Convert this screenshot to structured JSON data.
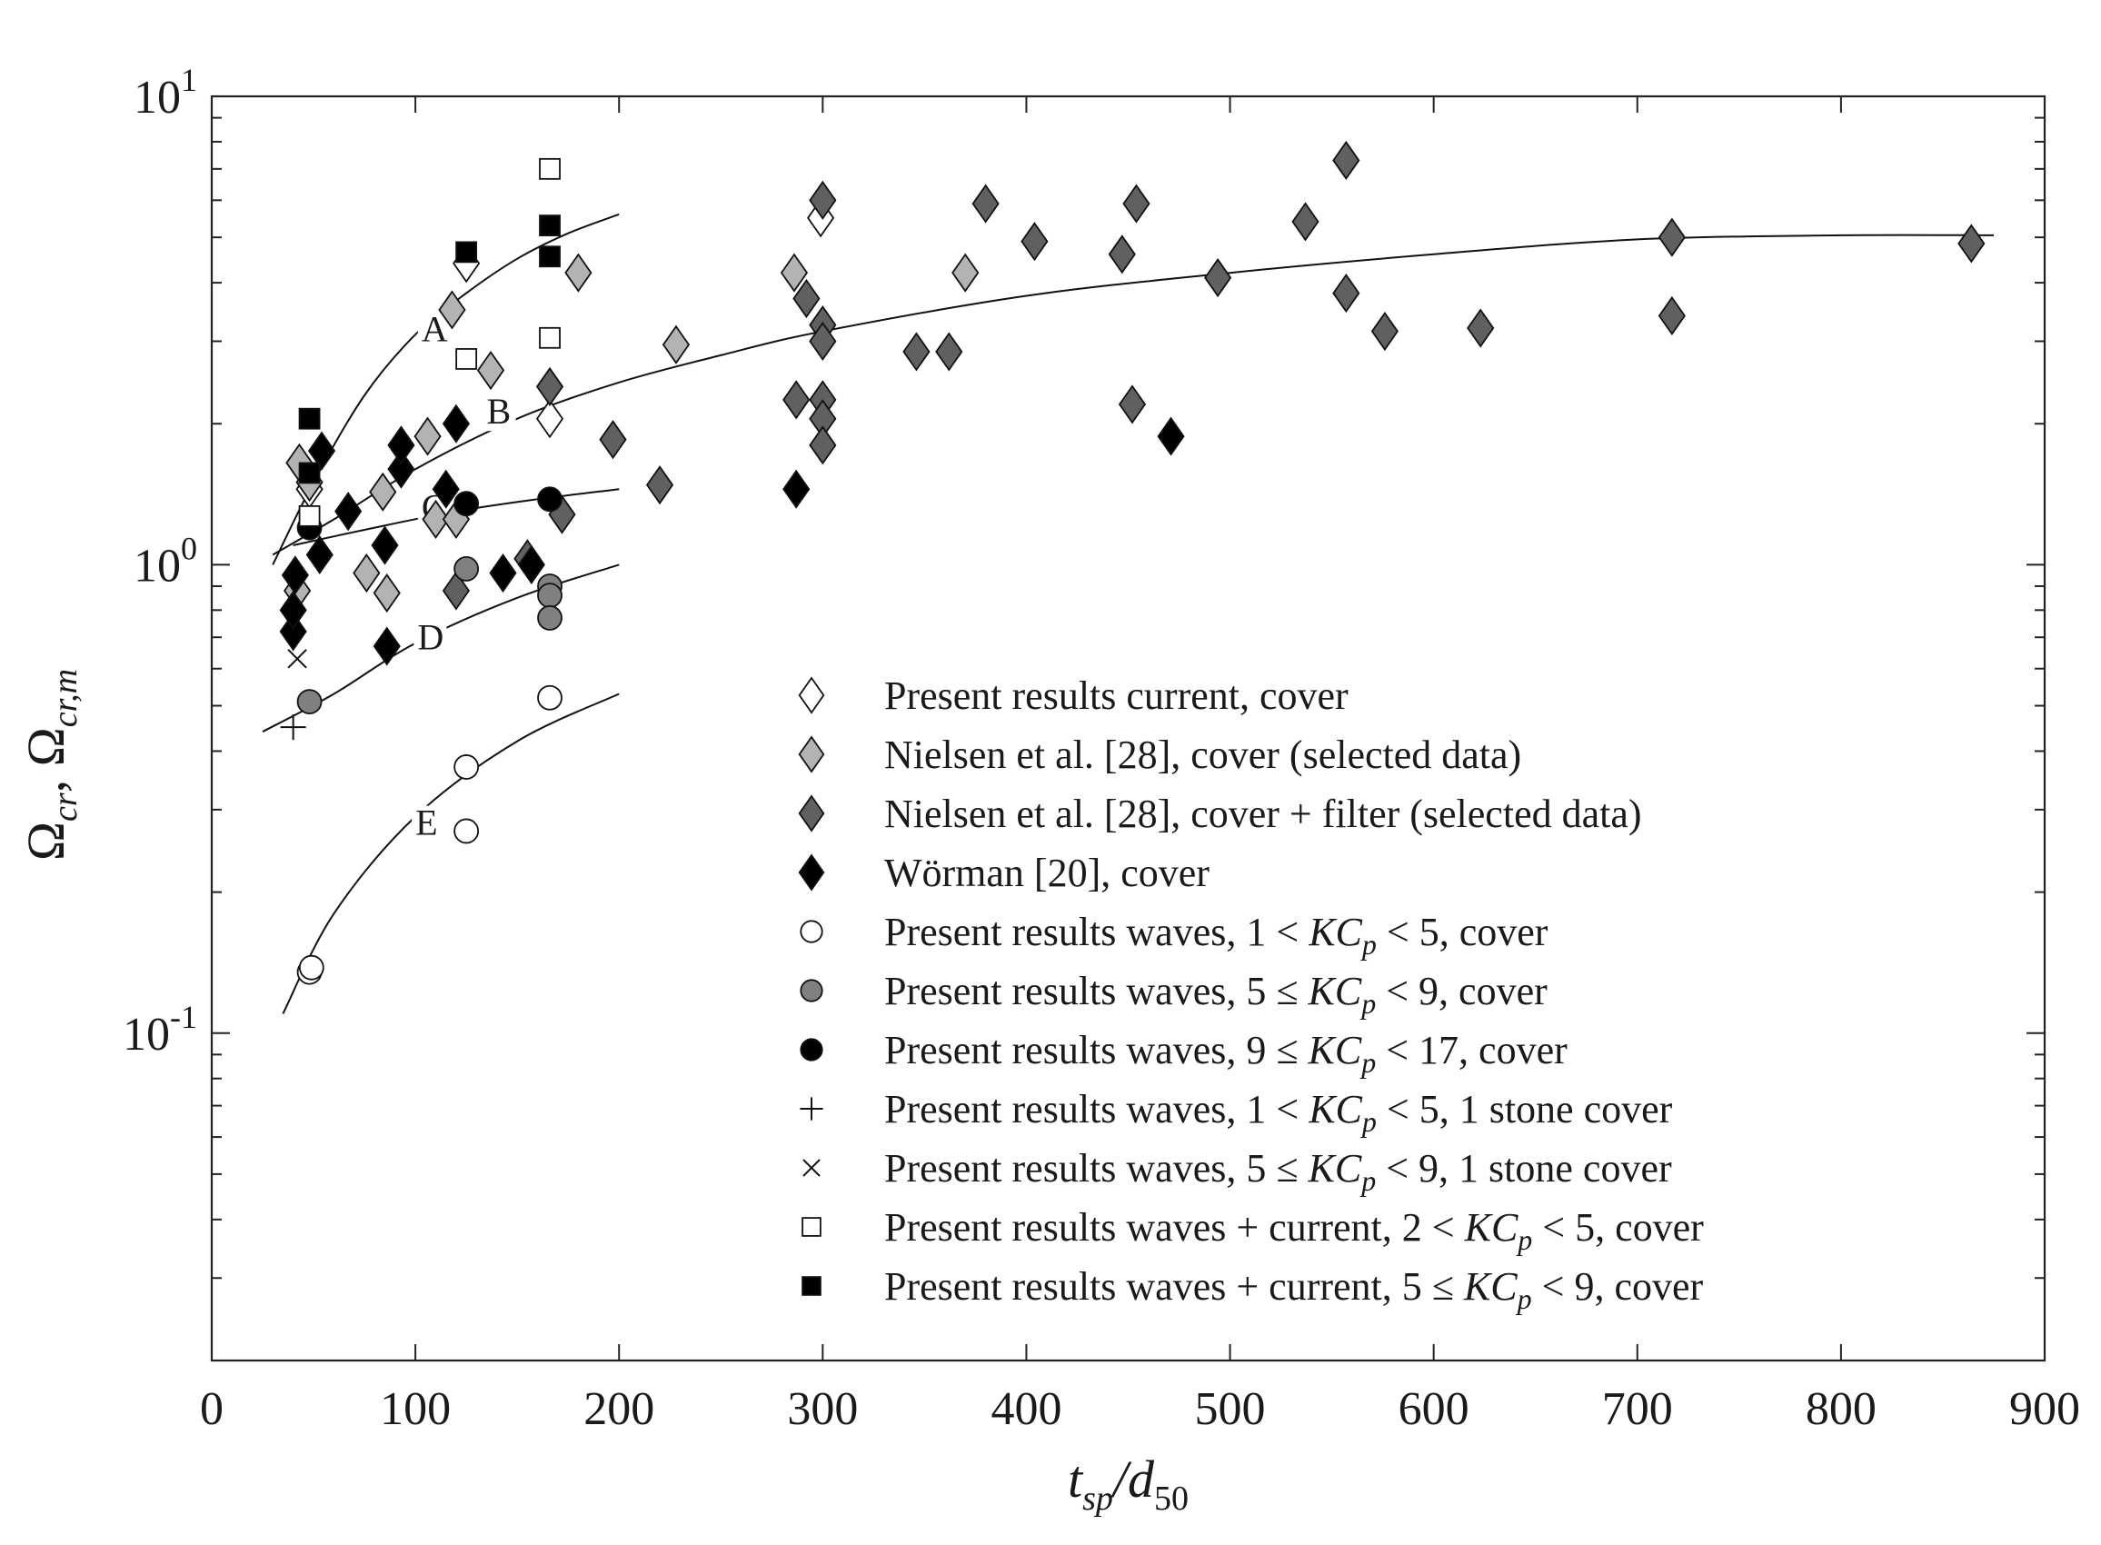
{
  "chart_data": {
    "type": "scatter",
    "xlabel": "t_sp/d_50",
    "ylabel": "Ω_cr, Ω_cr,m",
    "xlabel_parts": {
      "base": "t",
      "sub": "sp",
      "sep": "/d",
      "sub2": "50"
    },
    "ylabel_parts": {
      "a": "Ω",
      "a_sub": "cr",
      "sep": ", Ω",
      "b_sub": "cr,m"
    },
    "xlim": [
      0,
      900
    ],
    "ylim": [
      0.02,
      10
    ],
    "yscale": "log",
    "x_ticks": [
      "0",
      "100",
      "200",
      "300",
      "400",
      "500",
      "600",
      "700",
      "800",
      "900"
    ],
    "y_ticks": [
      {
        "value": 10,
        "base": "10",
        "exp": "1"
      },
      {
        "value": 1,
        "base": "10",
        "exp": "0"
      },
      {
        "value": 0.1,
        "base": "10",
        "exp": "-1"
      }
    ],
    "legend_position": "lower-right",
    "curves": [
      {
        "label": "A",
        "label_at": [
          103,
          3.0
        ],
        "points": [
          [
            30,
            1.0
          ],
          [
            50,
            1.5
          ],
          [
            75,
            2.3
          ],
          [
            100,
            3.1
          ],
          [
            125,
            3.8
          ],
          [
            150,
            4.5
          ],
          [
            175,
            5.1
          ],
          [
            200,
            5.6
          ]
        ]
      },
      {
        "label": "B",
        "label_at": [
          135,
          2.0
        ],
        "points": [
          [
            30,
            1.05
          ],
          [
            60,
            1.25
          ],
          [
            100,
            1.6
          ],
          [
            150,
            2.05
          ],
          [
            200,
            2.45
          ],
          [
            250,
            2.8
          ],
          [
            300,
            3.15
          ],
          [
            400,
            3.75
          ],
          [
            500,
            4.2
          ],
          [
            600,
            4.6
          ],
          [
            700,
            4.95
          ],
          [
            800,
            5.05
          ],
          [
            875,
            5.05
          ]
        ]
      },
      {
        "label": "C",
        "label_at": [
          103,
          1.25
        ],
        "points": [
          [
            40,
            1.1
          ],
          [
            80,
            1.2
          ],
          [
            120,
            1.3
          ],
          [
            160,
            1.38
          ],
          [
            200,
            1.45
          ]
        ]
      },
      {
        "label": "D",
        "label_at": [
          101,
          0.66
        ],
        "points": [
          [
            25,
            0.44
          ],
          [
            60,
            0.53
          ],
          [
            100,
            0.68
          ],
          [
            150,
            0.85
          ],
          [
            200,
            1.0
          ]
        ]
      },
      {
        "label": "E",
        "label_at": [
          100,
          0.265
        ],
        "points": [
          [
            35,
            0.11
          ],
          [
            60,
            0.18
          ],
          [
            100,
            0.29
          ],
          [
            150,
            0.42
          ],
          [
            200,
            0.53
          ]
        ]
      }
    ],
    "series": [
      {
        "name": "Present results current, cover",
        "marker": "diamond",
        "fill": "#ffffff",
        "points": [
          [
            48,
            1.45
          ],
          [
            125,
            4.4
          ],
          [
            166,
            2.05
          ],
          [
            299,
            5.5
          ]
        ]
      },
      {
        "name": "Nielsen et al. [28], cover (selected data)",
        "marker": "diamond",
        "fill": "#b3b3b3",
        "points": [
          [
            43,
            1.65
          ],
          [
            48,
            1.5
          ],
          [
            42,
            0.88
          ],
          [
            76,
            0.96
          ],
          [
            86,
            0.87
          ],
          [
            84,
            1.43
          ],
          [
            106,
            1.88
          ],
          [
            110,
            1.25
          ],
          [
            118,
            3.5
          ],
          [
            120,
            1.25
          ],
          [
            137,
            2.6
          ],
          [
            180,
            4.2
          ],
          [
            228,
            2.95
          ],
          [
            286,
            4.2
          ],
          [
            370,
            4.2
          ]
        ]
      },
      {
        "name": "Nielsen et al. [28], cover + filter (selected data)",
        "marker": "diamond",
        "fill": "#606060",
        "points": [
          [
            120,
            0.88
          ],
          [
            155,
            1.03
          ],
          [
            166,
            2.4
          ],
          [
            172,
            1.28
          ],
          [
            197,
            1.85
          ],
          [
            220,
            1.48
          ],
          [
            287,
            2.25
          ],
          [
            292,
            3.7
          ],
          [
            300,
            6.0
          ],
          [
            300,
            3.25
          ],
          [
            300,
            3.0
          ],
          [
            300,
            2.25
          ],
          [
            300,
            2.05
          ],
          [
            300,
            1.8
          ],
          [
            346,
            2.85
          ],
          [
            362,
            2.85
          ],
          [
            380,
            5.9
          ],
          [
            404,
            4.9
          ],
          [
            447,
            4.6
          ],
          [
            452,
            2.2
          ],
          [
            454,
            5.9
          ],
          [
            494,
            4.1
          ],
          [
            537,
            5.4
          ],
          [
            557,
            7.3
          ],
          [
            557,
            3.8
          ],
          [
            576,
            3.15
          ],
          [
            623,
            3.2
          ],
          [
            717,
            5.0
          ],
          [
            717,
            3.4
          ],
          [
            864,
            4.85
          ]
        ]
      },
      {
        "name": "Wörman [20], cover",
        "marker": "diamond",
        "fill": "#000000",
        "points": [
          [
            40,
            0.72
          ],
          [
            40,
            0.8
          ],
          [
            41,
            0.95
          ],
          [
            53,
            1.05
          ],
          [
            54,
            1.75
          ],
          [
            67,
            1.3
          ],
          [
            85,
            1.1
          ],
          [
            86,
            0.67
          ],
          [
            93,
            1.6
          ],
          [
            93,
            1.8
          ],
          [
            115,
            1.45
          ],
          [
            120,
            2.0
          ],
          [
            143,
            0.96
          ],
          [
            157,
            1.0
          ],
          [
            287,
            1.45
          ],
          [
            471,
            1.88
          ]
        ]
      },
      {
        "name": "Present results waves, 1 < KC_p < 5, cover",
        "marker": "circle",
        "fill": "#ffffff",
        "points": [
          [
            48,
            0.135
          ],
          [
            49,
            0.138
          ],
          [
            125,
            0.37
          ],
          [
            125,
            0.27
          ],
          [
            166,
            0.52
          ]
        ]
      },
      {
        "name": "Present results waves, 5 ≤ KC_p < 9, cover",
        "marker": "circle",
        "fill": "#808080",
        "points": [
          [
            48,
            0.51
          ],
          [
            125,
            0.98
          ],
          [
            166,
            0.9
          ],
          [
            166,
            0.86
          ],
          [
            166,
            0.77
          ]
        ]
      },
      {
        "name": "Present results waves, 9 ≤ KC_p < 17, cover",
        "marker": "circle",
        "fill": "#000000",
        "points": [
          [
            48,
            1.2
          ],
          [
            125,
            1.35
          ],
          [
            166,
            1.38
          ]
        ]
      },
      {
        "name": "Present results waves, 1 < KC_p < 5, 1 stone cover",
        "marker": "plus",
        "fill": "#000000",
        "points": [
          [
            40,
            0.45
          ]
        ]
      },
      {
        "name": "Present results waves, 5 ≤ KC_p < 9, 1 stone cover",
        "marker": "x",
        "fill": "#000000",
        "points": [
          [
            42,
            0.63
          ]
        ]
      },
      {
        "name": "Present results waves + current, 2 < KC_p < 5, cover",
        "marker": "square",
        "fill": "#ffffff",
        "points": [
          [
            48,
            1.27
          ],
          [
            125,
            2.75
          ],
          [
            166,
            7.0
          ],
          [
            166,
            3.05
          ]
        ]
      },
      {
        "name": "Present results waves + current, 5 ≤ KC_p < 9, cover",
        "marker": "square",
        "fill": "#000000",
        "points": [
          [
            48,
            2.05
          ],
          [
            48,
            1.57
          ],
          [
            125,
            4.65
          ],
          [
            166,
            5.3
          ],
          [
            166,
            4.55
          ]
        ]
      }
    ],
    "legend": [
      {
        "marker": "diamond",
        "fill": "#ffffff",
        "parts": [
          {
            "t": "Present results current, cover"
          }
        ]
      },
      {
        "marker": "diamond",
        "fill": "#b3b3b3",
        "parts": [
          {
            "t": "Nielsen et al. [28], cover (selected data)"
          }
        ]
      },
      {
        "marker": "diamond",
        "fill": "#606060",
        "parts": [
          {
            "t": "Nielsen et al. [28], cover + filter (selected data)"
          }
        ]
      },
      {
        "marker": "diamond",
        "fill": "#000000",
        "parts": [
          {
            "t": "Wörman [20], cover"
          }
        ]
      },
      {
        "marker": "circle",
        "fill": "#ffffff",
        "parts": [
          {
            "t": "Present results waves, 1 < "
          },
          {
            "t": "KC",
            "i": true
          },
          {
            "t": "p",
            "sub": true,
            "i": true
          },
          {
            "t": " < 5, cover"
          }
        ]
      },
      {
        "marker": "circle",
        "fill": "#808080",
        "parts": [
          {
            "t": "Present results waves, 5 ≤ "
          },
          {
            "t": "KC",
            "i": true
          },
          {
            "t": "p",
            "sub": true,
            "i": true
          },
          {
            "t": " < 9, cover"
          }
        ]
      },
      {
        "marker": "circle",
        "fill": "#000000",
        "parts": [
          {
            "t": "Present results waves, 9 ≤ "
          },
          {
            "t": "KC",
            "i": true
          },
          {
            "t": "p",
            "sub": true,
            "i": true
          },
          {
            "t": " < 17, cover"
          }
        ]
      },
      {
        "marker": "plus",
        "fill": "#000000",
        "parts": [
          {
            "t": "Present results waves, 1 < "
          },
          {
            "t": "KC",
            "i": true
          },
          {
            "t": "p",
            "sub": true,
            "i": true
          },
          {
            "t": " < 5, 1 stone cover"
          }
        ]
      },
      {
        "marker": "x",
        "fill": "#000000",
        "parts": [
          {
            "t": "Present results waves, 5 ≤ "
          },
          {
            "t": "KC",
            "i": true
          },
          {
            "t": "p",
            "sub": true,
            "i": true
          },
          {
            "t": " < 9, 1 stone cover"
          }
        ]
      },
      {
        "marker": "square",
        "fill": "#ffffff",
        "parts": [
          {
            "t": "Present results waves + current, 2 < "
          },
          {
            "t": "KC",
            "i": true
          },
          {
            "t": "p",
            "sub": true,
            "i": true
          },
          {
            "t": " < 5, cover"
          }
        ]
      },
      {
        "marker": "square",
        "fill": "#000000",
        "parts": [
          {
            "t": "Present results waves + current, 5 ≤ "
          },
          {
            "t": "KC",
            "i": true
          },
          {
            "t": "p",
            "sub": true,
            "i": true
          },
          {
            "t": " < 9, cover"
          }
        ]
      }
    ]
  }
}
